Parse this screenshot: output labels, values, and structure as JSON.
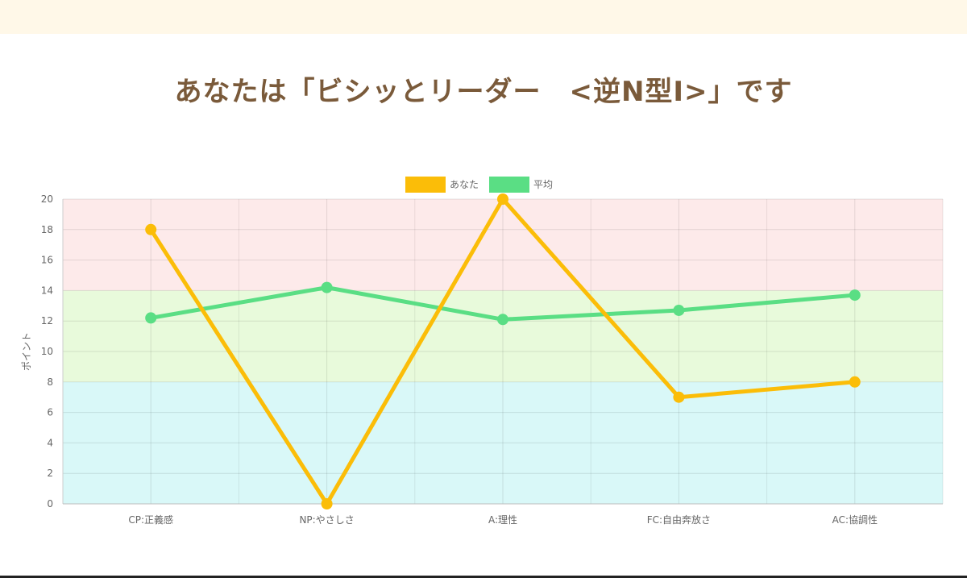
{
  "page": {
    "title": "あなたは「ビシッとリーダー　<逆N型Ⅰ>」です"
  },
  "chart_data": {
    "type": "line",
    "categories": [
      "CP:正義感",
      "NP:やさしさ",
      "A:理性",
      "FC:自由奔放さ",
      "AC:協調性"
    ],
    "series": [
      {
        "name": "あなた",
        "values": [
          18,
          0,
          20,
          7,
          8
        ],
        "color": "#fbbd08"
      },
      {
        "name": "平均",
        "values": [
          12.2,
          14.2,
          12.1,
          12.7,
          13.7
        ],
        "color": "#5ade84"
      }
    ],
    "ylabel": "ポイント",
    "xlabel": "",
    "ylim": [
      0,
      20
    ],
    "yticks": [
      0,
      2,
      4,
      6,
      8,
      10,
      12,
      14,
      16,
      18,
      20
    ],
    "grid": true,
    "legend_position": "top-center",
    "background_bands": [
      {
        "from": 0,
        "to": 8,
        "color": "#d9f8f8"
      },
      {
        "from": 8,
        "to": 14,
        "color": "#e8fadb"
      },
      {
        "from": 14,
        "to": 20,
        "color": "#fdeaea"
      }
    ]
  }
}
